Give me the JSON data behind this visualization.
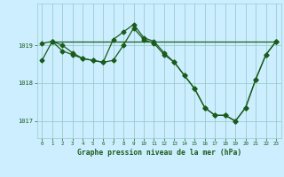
{
  "xlabel": "Graphe pression niveau de la mer (hPa)",
  "bg_color": "#cceeff",
  "grid_color": "#99cccc",
  "line_color": "#1a5c1a",
  "xlim": [
    -0.5,
    23.5
  ],
  "ylim": [
    1016.55,
    1020.1
  ],
  "yticks": [
    1017,
    1018,
    1019
  ],
  "xticks": [
    0,
    1,
    2,
    3,
    4,
    5,
    6,
    7,
    8,
    9,
    10,
    11,
    12,
    13,
    14,
    15,
    16,
    17,
    18,
    19,
    20,
    21,
    22,
    23
  ],
  "series1_x": [
    0,
    1,
    2,
    3,
    4,
    5,
    6,
    7,
    8,
    9,
    10,
    11,
    12,
    13,
    14,
    15,
    16,
    17,
    18,
    19,
    20,
    21,
    22,
    23
  ],
  "series1_y": [
    1018.6,
    1019.1,
    1019.0,
    1018.8,
    1018.65,
    1018.6,
    1018.55,
    1019.15,
    1019.35,
    1019.55,
    1019.2,
    1019.1,
    1018.8,
    1018.55,
    1018.2,
    1017.85,
    1017.35,
    1017.15,
    1017.15,
    1017.0,
    1017.35,
    1018.1,
    1018.75,
    1019.1
  ],
  "series2_x": [
    1,
    23
  ],
  "series2_y": [
    1019.1,
    1019.1
  ],
  "series3_x": [
    0,
    1,
    2,
    3,
    4,
    5,
    6,
    7,
    8,
    9,
    10,
    11,
    12,
    13,
    14,
    15,
    16,
    17,
    18,
    19,
    20,
    21,
    22,
    23
  ],
  "series3_y": [
    1019.05,
    1019.1,
    1018.85,
    1018.75,
    1018.65,
    1018.6,
    1018.55,
    1018.6,
    1019.0,
    1019.45,
    1019.15,
    1019.05,
    1018.75,
    1018.55,
    1018.2,
    1017.85,
    1017.35,
    1017.15,
    1017.15,
    1017.0,
    1017.35,
    1018.1,
    1018.75,
    1019.1
  ]
}
